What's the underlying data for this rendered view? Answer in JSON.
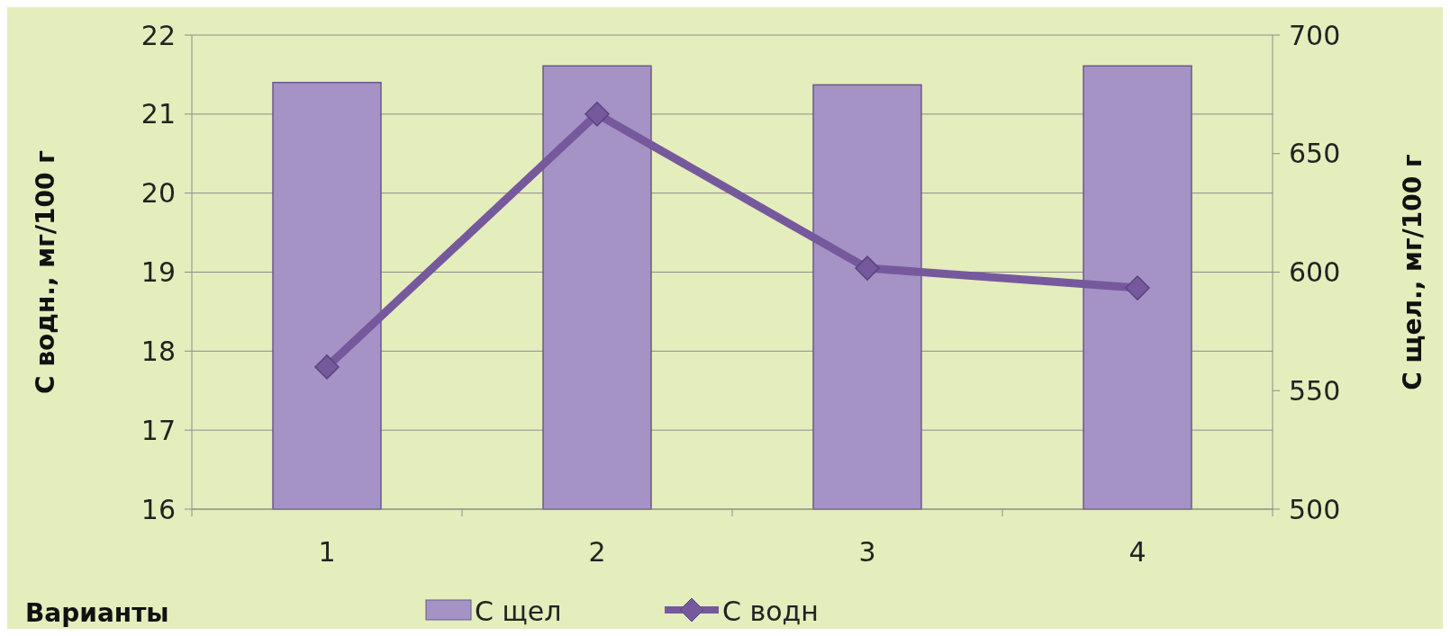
{
  "chart_data": {
    "type": "bar",
    "xlabel": "Варианты",
    "ylabel": "С водн., мг/100 г",
    "y2label": "С щел., мг/100 г",
    "categories": [
      "1",
      "2",
      "3",
      "4"
    ],
    "series": [
      {
        "name": "С щел",
        "axis": "y2",
        "color": "#a493c4",
        "values": [
          680,
          687,
          679,
          687
        ]
      },
      {
        "name": "С водн",
        "type": "line",
        "color": "#76599c",
        "values": [
          17.8,
          21.0,
          19.05,
          18.8
        ]
      }
    ],
    "ylim": [
      16,
      22
    ],
    "yticks": [
      16,
      17,
      18,
      19,
      20,
      21,
      22
    ],
    "y2lim": [
      500,
      700
    ],
    "y2ticks": [
      500,
      550,
      600,
      650,
      700
    ],
    "grid": "y",
    "legend": "bottom",
    "marker": "diamond",
    "line_style": "solid"
  }
}
